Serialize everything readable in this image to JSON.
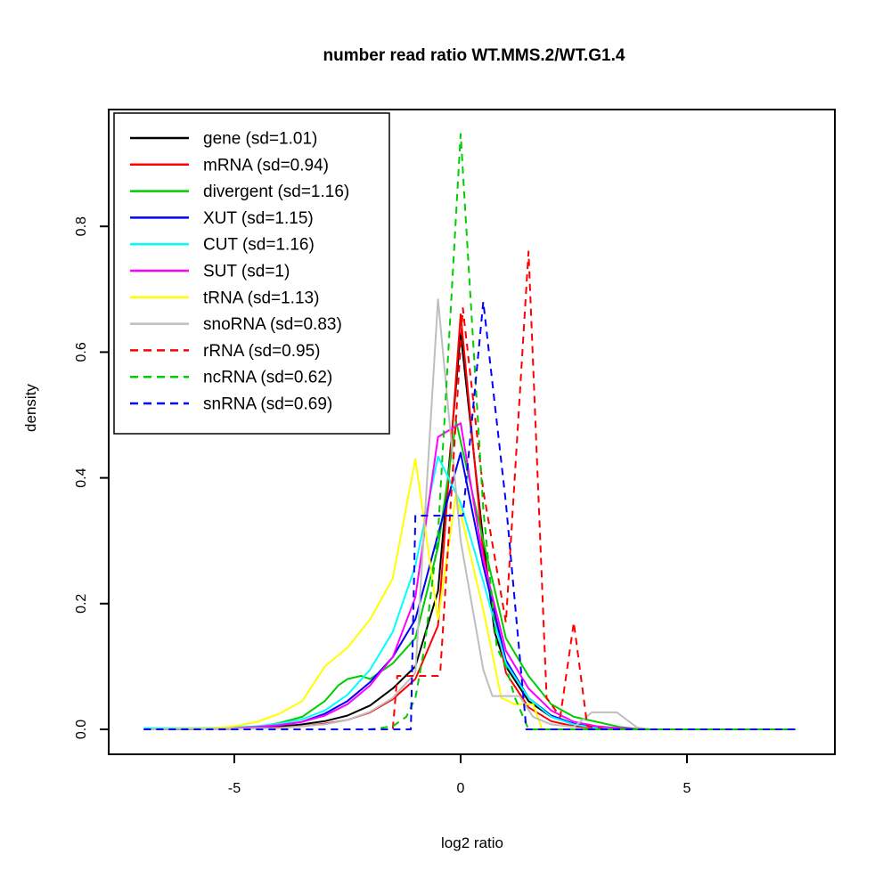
{
  "chart_data": {
    "type": "line",
    "title": "number read ratio WT.MMS.2/WT.G1.4",
    "xlabel": "log2 ratio",
    "ylabel": "density",
    "xlim": [
      -7.8,
      8.3
    ],
    "ylim": [
      -0.04,
      0.99
    ],
    "grid": false,
    "legend_position": "top-left",
    "x_ticks": [
      -5,
      0,
      5
    ],
    "x_tick_labels": [
      "-5",
      "0",
      "5"
    ],
    "y_ticks": [
      0.0,
      0.2,
      0.4,
      0.6,
      0.8
    ],
    "y_tick_labels": [
      "0.0",
      "0.2",
      "0.4",
      "0.6",
      "0.8"
    ],
    "series": [
      {
        "name": "gene",
        "legend_label": "gene (sd=1.01)",
        "sd": 1.01,
        "color": "#000000",
        "linetype": "solid",
        "points": [
          [
            -7,
            0
          ],
          [
            -5,
            0.001
          ],
          [
            -4.5,
            0.002
          ],
          [
            -4,
            0.004
          ],
          [
            -3.5,
            0.008
          ],
          [
            -3,
            0.013
          ],
          [
            -2.5,
            0.022
          ],
          [
            -2,
            0.038
          ],
          [
            -1.5,
            0.065
          ],
          [
            -1,
            0.1
          ],
          [
            -0.5,
            0.22
          ],
          [
            0,
            0.63
          ],
          [
            0.5,
            0.3
          ],
          [
            0.75,
            0.155
          ],
          [
            1,
            0.1
          ],
          [
            1.5,
            0.045
          ],
          [
            2,
            0.02
          ],
          [
            2.5,
            0.008
          ],
          [
            3,
            0.003
          ],
          [
            3.5,
            0.001
          ],
          [
            4,
            0
          ],
          [
            7.4,
            0
          ]
        ]
      },
      {
        "name": "mRNA",
        "legend_label": "mRNA (sd=0.94)",
        "sd": 0.94,
        "color": "#FF0000",
        "linetype": "solid",
        "points": [
          [
            -7,
            0
          ],
          [
            -5,
            0.001
          ],
          [
            -4,
            0.003
          ],
          [
            -3.5,
            0.005
          ],
          [
            -3,
            0.009
          ],
          [
            -2.5,
            0.015
          ],
          [
            -2,
            0.027
          ],
          [
            -1.5,
            0.048
          ],
          [
            -1,
            0.08
          ],
          [
            -0.5,
            0.165
          ],
          [
            0,
            0.66
          ],
          [
            0.5,
            0.28
          ],
          [
            1,
            0.09
          ],
          [
            1.5,
            0.035
          ],
          [
            2,
            0.013
          ],
          [
            2.5,
            0.005
          ],
          [
            3,
            0.002
          ],
          [
            3.5,
            0
          ],
          [
            7.4,
            0
          ]
        ]
      },
      {
        "name": "divergent",
        "legend_label": "divergent (sd=1.16)",
        "sd": 1.16,
        "color": "#00CD00",
        "linetype": "solid",
        "points": [
          [
            -7,
            0
          ],
          [
            -5,
            0.002
          ],
          [
            -4.5,
            0.004
          ],
          [
            -4,
            0.01
          ],
          [
            -3.5,
            0.02
          ],
          [
            -3,
            0.045
          ],
          [
            -2.7,
            0.07
          ],
          [
            -2.5,
            0.08
          ],
          [
            -2.2,
            0.085
          ],
          [
            -2,
            0.08
          ],
          [
            -1.5,
            0.105
          ],
          [
            -1,
            0.145
          ],
          [
            -0.5,
            0.29
          ],
          [
            -0.1,
            0.49
          ],
          [
            0.5,
            0.3
          ],
          [
            1,
            0.145
          ],
          [
            1.5,
            0.085
          ],
          [
            2,
            0.04
          ],
          [
            2.5,
            0.02
          ],
          [
            3,
            0.012
          ],
          [
            3.5,
            0.004
          ],
          [
            4,
            0
          ],
          [
            7.4,
            0
          ]
        ]
      },
      {
        "name": "XUT",
        "legend_label": "XUT (sd=1.15)",
        "sd": 1.15,
        "color": "#0000FF",
        "linetype": "solid",
        "points": [
          [
            -7,
            0
          ],
          [
            -5,
            0.001
          ],
          [
            -4.5,
            0.003
          ],
          [
            -4,
            0.006
          ],
          [
            -3.5,
            0.012
          ],
          [
            -3,
            0.025
          ],
          [
            -2.5,
            0.045
          ],
          [
            -2,
            0.075
          ],
          [
            -1.5,
            0.115
          ],
          [
            -1,
            0.175
          ],
          [
            -0.5,
            0.31
          ],
          [
            0,
            0.44
          ],
          [
            0.5,
            0.26
          ],
          [
            1,
            0.11
          ],
          [
            1.5,
            0.05
          ],
          [
            2,
            0.022
          ],
          [
            2.5,
            0.009
          ],
          [
            3,
            0.003
          ],
          [
            3.5,
            0
          ],
          [
            7.4,
            0
          ]
        ]
      },
      {
        "name": "CUT",
        "legend_label": "CUT (sd=1.16)",
        "sd": 1.16,
        "color": "#00FFFF",
        "linetype": "solid",
        "points": [
          [
            -7,
            0.002
          ],
          [
            -6,
            0.002
          ],
          [
            -5,
            0.003
          ],
          [
            -4.5,
            0.005
          ],
          [
            -4,
            0.009
          ],
          [
            -3.5,
            0.016
          ],
          [
            -3,
            0.03
          ],
          [
            -2.5,
            0.055
          ],
          [
            -2,
            0.095
          ],
          [
            -1.5,
            0.155
          ],
          [
            -1,
            0.26
          ],
          [
            -0.5,
            0.434
          ],
          [
            0,
            0.36
          ],
          [
            0.5,
            0.235
          ],
          [
            1,
            0.105
          ],
          [
            1.5,
            0.05
          ],
          [
            2,
            0.02
          ],
          [
            2.5,
            0.008
          ],
          [
            3,
            0.002
          ],
          [
            3.5,
            0
          ],
          [
            7.4,
            0
          ]
        ]
      },
      {
        "name": "SUT",
        "legend_label": "SUT (sd=1)",
        "sd": 1,
        "color": "#FF00FF",
        "linetype": "solid",
        "points": [
          [
            -7,
            0
          ],
          [
            -5,
            0.002
          ],
          [
            -4.5,
            0.004
          ],
          [
            -4,
            0.007
          ],
          [
            -3.5,
            0.012
          ],
          [
            -3,
            0.022
          ],
          [
            -2.5,
            0.04
          ],
          [
            -2,
            0.07
          ],
          [
            -1.5,
            0.115
          ],
          [
            -1,
            0.21
          ],
          [
            -0.5,
            0.465
          ],
          [
            0,
            0.487
          ],
          [
            0.5,
            0.27
          ],
          [
            1,
            0.125
          ],
          [
            1.5,
            0.065
          ],
          [
            2,
            0.03
          ],
          [
            2.5,
            0.012
          ],
          [
            3,
            0.005
          ],
          [
            3.5,
            0.002
          ],
          [
            4,
            0
          ],
          [
            7.4,
            0
          ]
        ]
      },
      {
        "name": "tRNA",
        "legend_label": "tRNA (sd=1.13)",
        "sd": 1.13,
        "color": "#FFFF00",
        "linetype": "solid",
        "points": [
          [
            -7,
            0
          ],
          [
            -5.5,
            0.002
          ],
          [
            -5,
            0.005
          ],
          [
            -4.5,
            0.012
          ],
          [
            -4,
            0.025
          ],
          [
            -3.5,
            0.045
          ],
          [
            -3,
            0.1
          ],
          [
            -2.5,
            0.13
          ],
          [
            -2,
            0.175
          ],
          [
            -1.5,
            0.24
          ],
          [
            -1,
            0.43
          ],
          [
            -0.5,
            0.175
          ],
          [
            -0.1,
            0.375
          ],
          [
            0.5,
            0.19
          ],
          [
            0.9,
            0.05
          ],
          [
            1.2,
            0.04
          ],
          [
            1.6,
            0.04
          ],
          [
            1.8,
            0
          ],
          [
            7.4,
            0
          ]
        ]
      },
      {
        "name": "snoRNA",
        "legend_label": "snoRNA (sd=0.83)",
        "sd": 0.83,
        "color": "#BEBEBE",
        "linetype": "solid",
        "points": [
          [
            -7,
            0
          ],
          [
            -4,
            0.002
          ],
          [
            -3,
            0.008
          ],
          [
            -2.5,
            0.015
          ],
          [
            -2,
            0.028
          ],
          [
            -1.5,
            0.05
          ],
          [
            -1,
            0.09
          ],
          [
            -0.5,
            0.684
          ],
          [
            0,
            0.3
          ],
          [
            0.5,
            0.095
          ],
          [
            0.7,
            0.053
          ],
          [
            1.3,
            0.053
          ],
          [
            1.6,
            0.02
          ],
          [
            2,
            0.008
          ],
          [
            2.5,
            0.004
          ],
          [
            2.9,
            0.027
          ],
          [
            3.45,
            0.027
          ],
          [
            3.9,
            0.003
          ],
          [
            4.2,
            0
          ],
          [
            7.4,
            0
          ]
        ]
      },
      {
        "name": "rRNA",
        "legend_label": "rRNA (sd=0.95)",
        "sd": 0.95,
        "color": "#FF0000",
        "linetype": "dashed",
        "points": [
          [
            -7,
            0
          ],
          [
            -2,
            0
          ],
          [
            -1.5,
            0
          ],
          [
            -1.4,
            0.085
          ],
          [
            -0.5,
            0.085
          ],
          [
            -0.45,
            0.09
          ],
          [
            0.05,
            0.67
          ],
          [
            0.5,
            0.38
          ],
          [
            1,
            0.17
          ],
          [
            1.5,
            0.76
          ],
          [
            1.9,
            0.05
          ],
          [
            2.2,
            0.02
          ],
          [
            2.5,
            0.17
          ],
          [
            2.8,
            0.005
          ],
          [
            3.2,
            0
          ],
          [
            7.4,
            0
          ]
        ]
      },
      {
        "name": "ncRNA",
        "legend_label": "ncRNA (sd=0.62)",
        "sd": 0.62,
        "color": "#00CD00",
        "linetype": "dashed",
        "points": [
          [
            -7,
            0
          ],
          [
            -2,
            0
          ],
          [
            -1.5,
            0.005
          ],
          [
            -1.2,
            0.02
          ],
          [
            -1,
            0.05
          ],
          [
            -0.8,
            0.13
          ],
          [
            -0.5,
            0.31
          ],
          [
            0,
            0.947
          ],
          [
            0.5,
            0.35
          ],
          [
            0.8,
            0.13
          ],
          [
            1,
            0.1
          ],
          [
            1.2,
            0.05
          ],
          [
            1.5,
            0
          ],
          [
            7.4,
            0
          ]
        ]
      },
      {
        "name": "snRNA",
        "legend_label": "snRNA (sd=0.69)",
        "sd": 0.69,
        "color": "#0000FF",
        "linetype": "dashed",
        "points": [
          [
            -7,
            0
          ],
          [
            -1.1,
            0
          ],
          [
            -1.0,
            0.34
          ],
          [
            0.05,
            0.34
          ],
          [
            0.5,
            0.68
          ],
          [
            1,
            0.36
          ],
          [
            1.2,
            0.2
          ],
          [
            1.45,
            0
          ],
          [
            7.4,
            0
          ]
        ]
      }
    ]
  }
}
